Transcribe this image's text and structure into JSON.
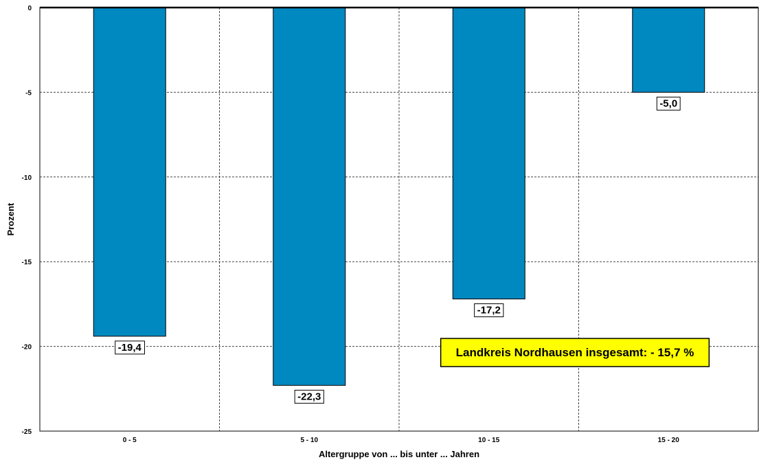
{
  "chart_data": {
    "type": "bar",
    "categories": [
      "0 - 5",
      "5 - 10",
      "10 - 15",
      "15 - 20"
    ],
    "values": [
      -19.4,
      -22.3,
      -17.2,
      -5.0
    ],
    "data_labels": [
      "-19,4",
      "-22,3",
      "-17,2",
      "-5,0"
    ],
    "xlabel": "Altergruppe von ... bis unter ... Jahren",
    "ylabel": "Prozent",
    "ylim": [
      -25,
      0
    ],
    "yticks": [
      0,
      -5,
      -10,
      -15,
      -20,
      -25
    ],
    "ytick_labels": [
      "0",
      "-5",
      "-10",
      "-15",
      "-20",
      "-25"
    ],
    "grid": true,
    "bar_color": "#0088c0",
    "annotation": {
      "text": "Landkreis Nordhausen insgesamt: - 15,7 %",
      "background": "#ffff00",
      "position": "lower-right"
    }
  }
}
